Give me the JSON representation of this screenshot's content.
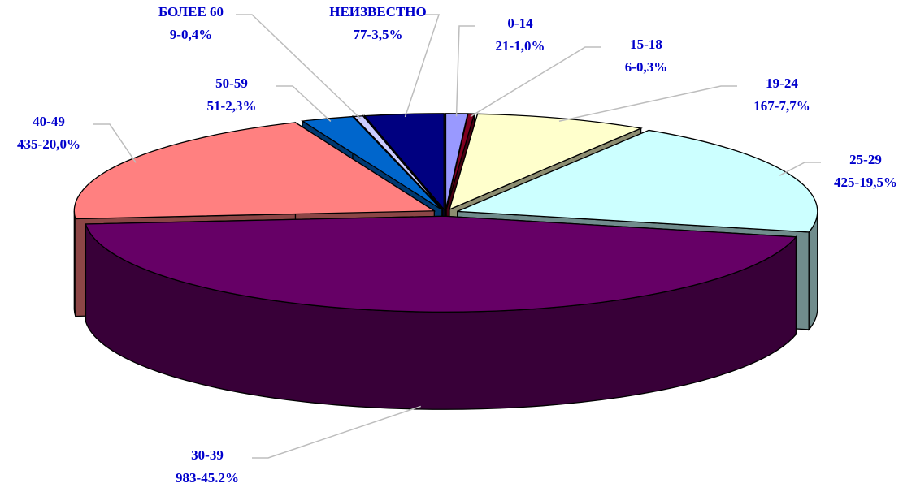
{
  "chart_data": {
    "type": "pie",
    "categories": [
      "0-14",
      "15-18",
      "19-24",
      "25-29",
      "30-39",
      "40-49",
      "50-59",
      "БОЛЕЕ 60",
      "НЕИЗВЕСТНО"
    ],
    "values": [
      21,
      6,
      167,
      425,
      983,
      435,
      51,
      9,
      77
    ],
    "value_labels": [
      "21-1,0%",
      "6-0,3%",
      "167-7,7%",
      "425-19,5%",
      "983-45.2%",
      "435-20,0%",
      "51-2,3%",
      "9-0,4%",
      "77-3,5%"
    ],
    "colors": [
      "#9999ff",
      "#800020",
      "#ffffcc",
      "#ccffff",
      "#660066",
      "#ff8080",
      "#0066cc",
      "#ccccff",
      "#000080"
    ]
  }
}
